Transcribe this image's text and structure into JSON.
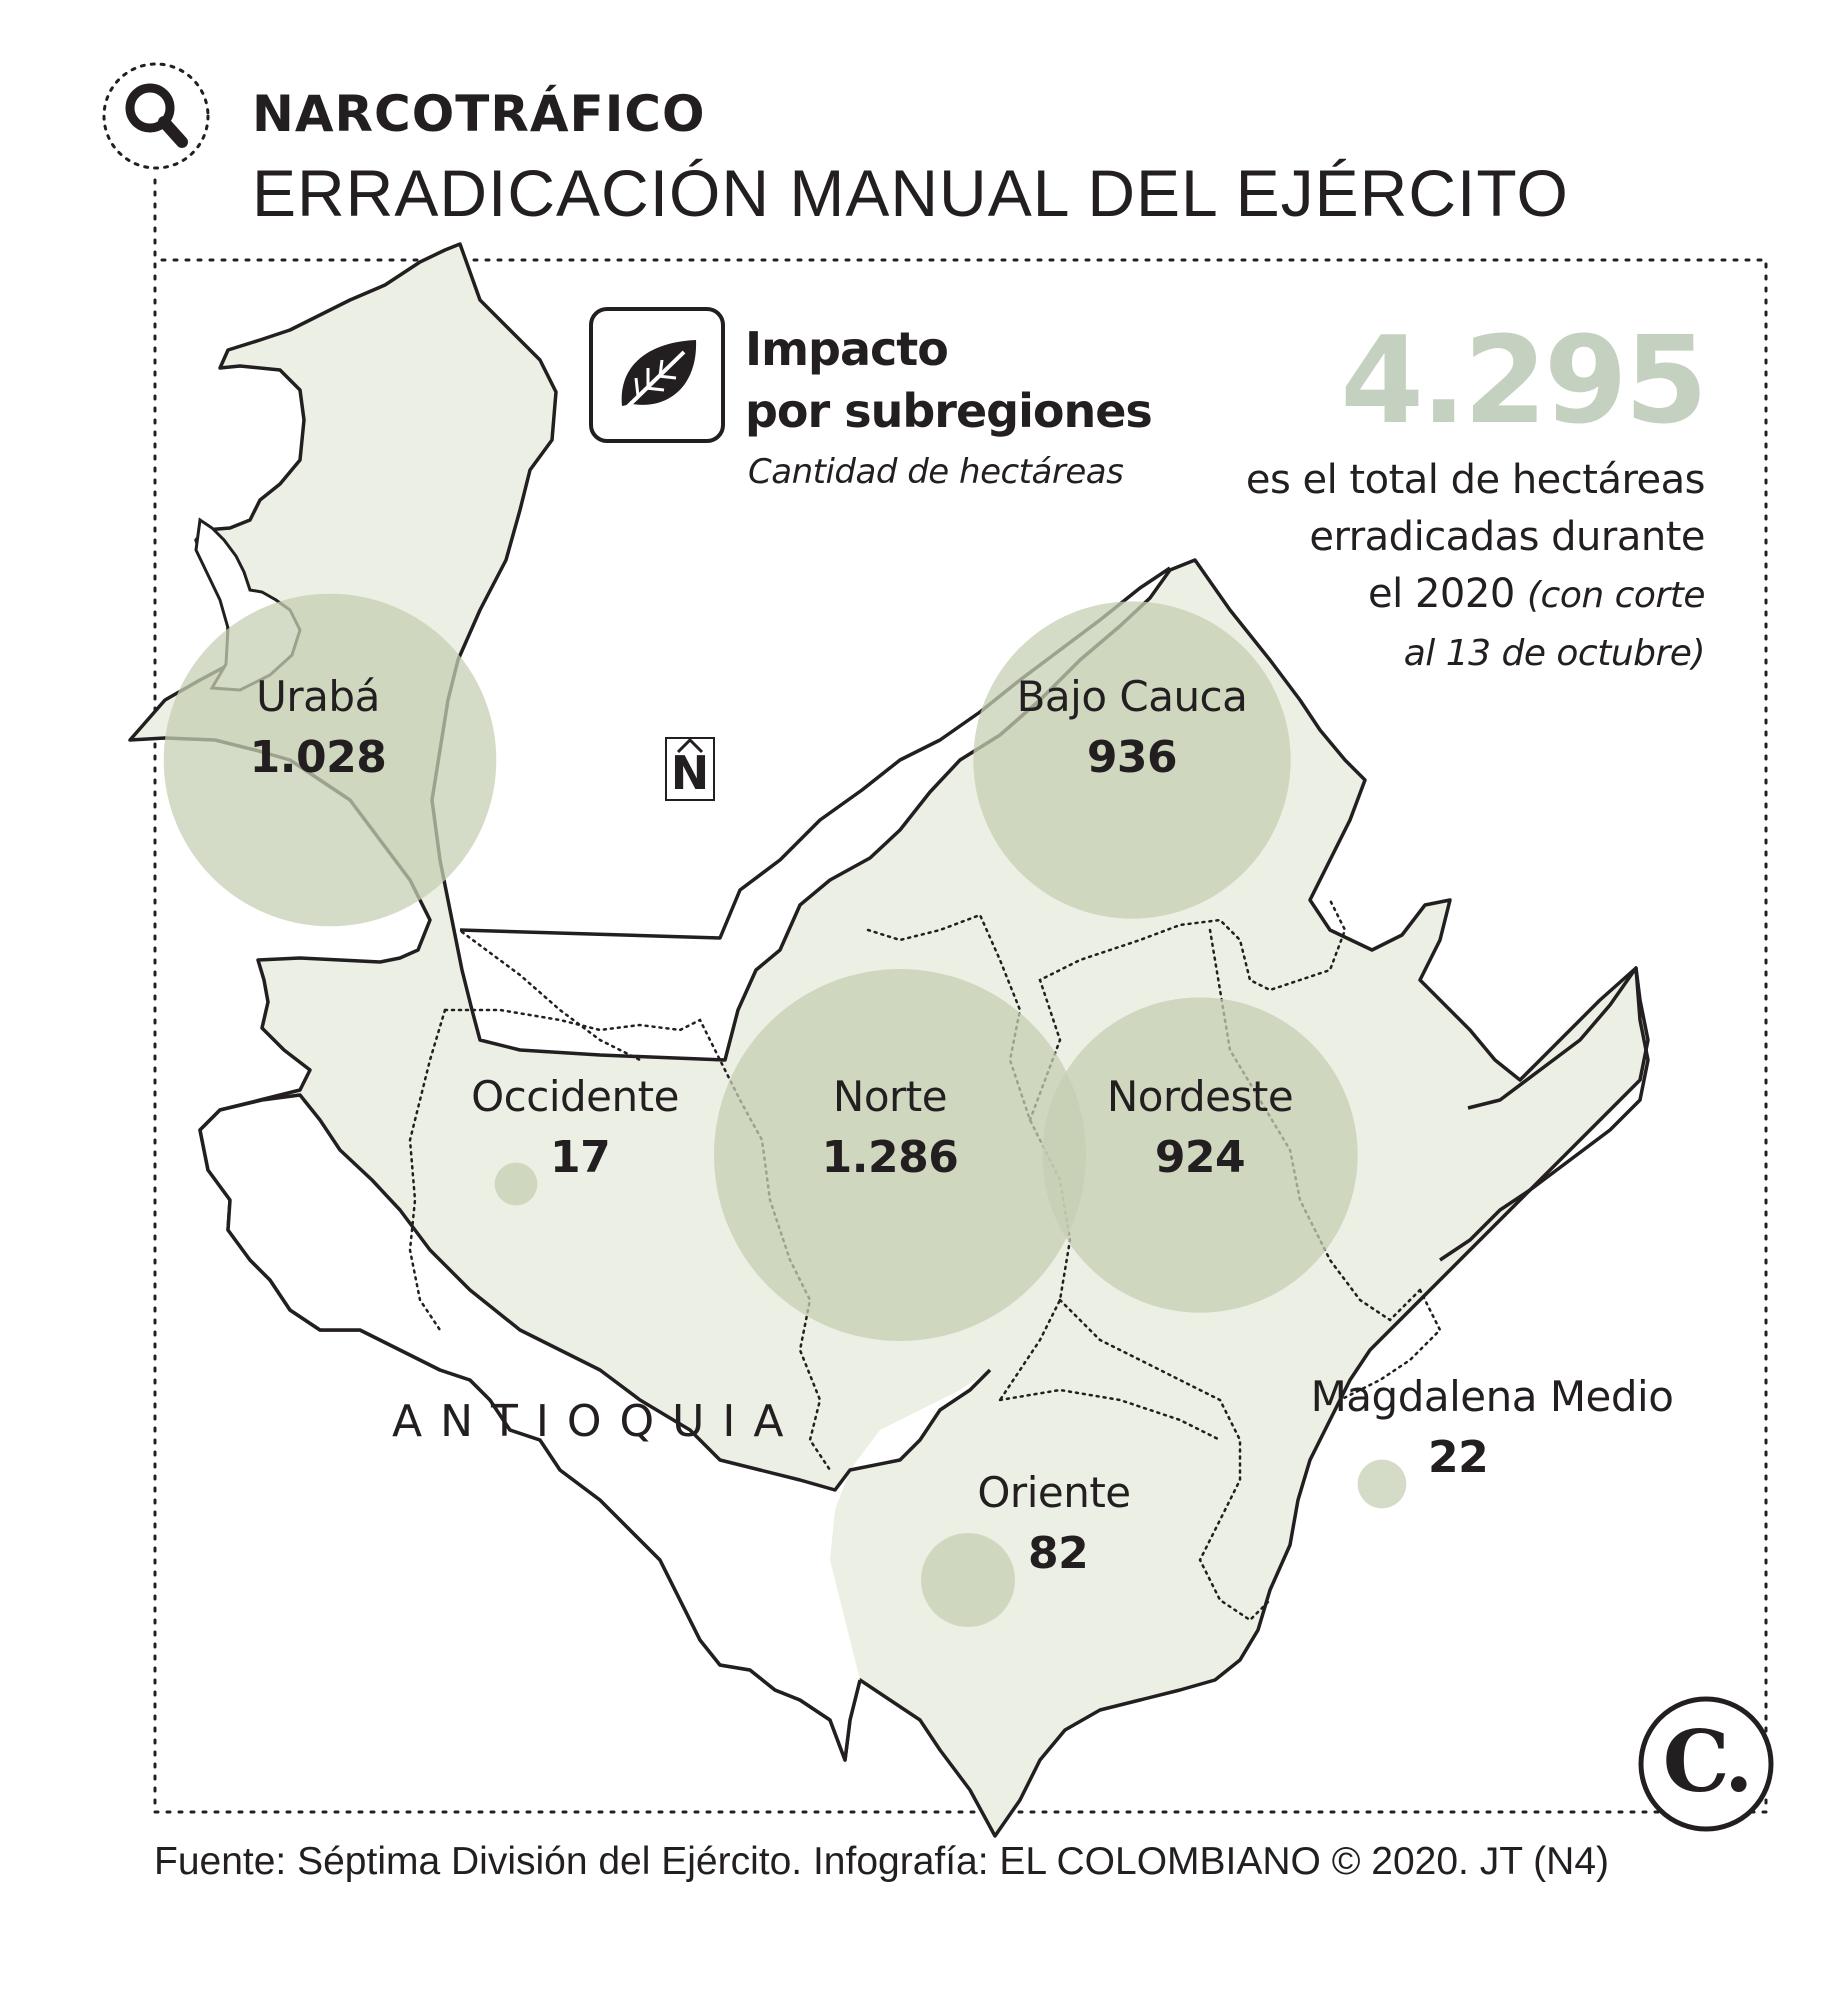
{
  "header": {
    "kicker": "NARCOTRÁFICO",
    "title": "ERRADICACIÓN MANUAL DEL EJÉRCITO"
  },
  "legend": {
    "title_line1": "Impacto",
    "title_line2": "por subregiones",
    "subtitle": "Cantidad de hectáreas",
    "icon": "leaf-icon"
  },
  "total": {
    "value": "4.295",
    "line1": "es el total de hectáreas",
    "line2": "erradicadas durante",
    "line3": "el 2020",
    "note1": "(con corte",
    "note2": "al 13 de octubre)"
  },
  "map": {
    "department_label": "ANTIOQUIA",
    "north_label": "N",
    "colors": {
      "fill": "#ecefe3",
      "circle": "#c5cfb3",
      "outline": "#231f20"
    },
    "subregions": [
      {
        "name": "Urabá",
        "label": "1.028",
        "value": 1028
      },
      {
        "name": "Bajo Cauca",
        "label": "936",
        "value": 936
      },
      {
        "name": "Occidente",
        "label": "17",
        "value": 17
      },
      {
        "name": "Norte",
        "label": "1.286",
        "value": 1286
      },
      {
        "name": "Nordeste",
        "label": "924",
        "value": 924
      },
      {
        "name": "Magdalena Medio",
        "label": "22",
        "value": 22
      },
      {
        "name": "Oriente",
        "label": "82",
        "value": 82
      }
    ]
  },
  "footer": {
    "source": "Fuente: Séptima División del Ejército. Infografía: EL COLOMBIANO © 2020. JT (N4)",
    "logo_letter": "C."
  }
}
